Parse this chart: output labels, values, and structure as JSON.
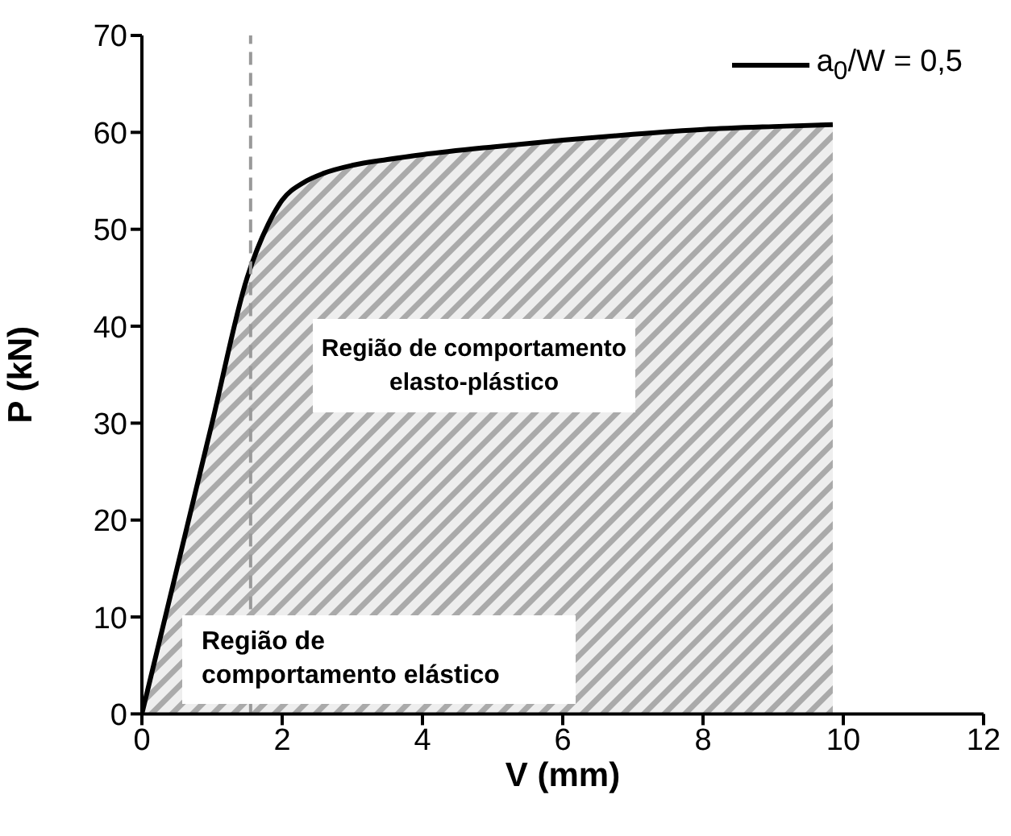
{
  "chart_data": {
    "type": "area",
    "xlabel": "V (mm)",
    "ylabel": "P (kN)",
    "xlim": [
      0,
      12
    ],
    "xticks": [
      0,
      2,
      4,
      6,
      8,
      10,
      12
    ],
    "ylim": [
      0,
      70
    ],
    "yticks": [
      0,
      10,
      20,
      30,
      40,
      50,
      60,
      70
    ],
    "series": [
      {
        "name": "a$_{0}$/W = 0,5",
        "color": "#000000",
        "x": [
          0,
          0.5,
          1.0,
          1.5,
          1.8,
          2.0,
          2.3,
          2.6,
          3.0,
          3.5,
          4.0,
          5.0,
          6.0,
          7.0,
          8.0,
          9.0,
          9.85
        ],
        "values": [
          0,
          15,
          30,
          45,
          50.5,
          53,
          54.8,
          55.8,
          56.6,
          57.2,
          57.7,
          58.5,
          59.2,
          59.8,
          60.3,
          60.6,
          60.8
        ]
      }
    ],
    "ref_lines": [
      {
        "axis": "x",
        "value": 1.55,
        "color": "#999999",
        "line_style": "dashed"
      }
    ],
    "annotations": [
      "Região de comportamento elasto-plástico",
      "Região de comportamento elástico"
    ],
    "legend": "top right",
    "grid": false
  }
}
